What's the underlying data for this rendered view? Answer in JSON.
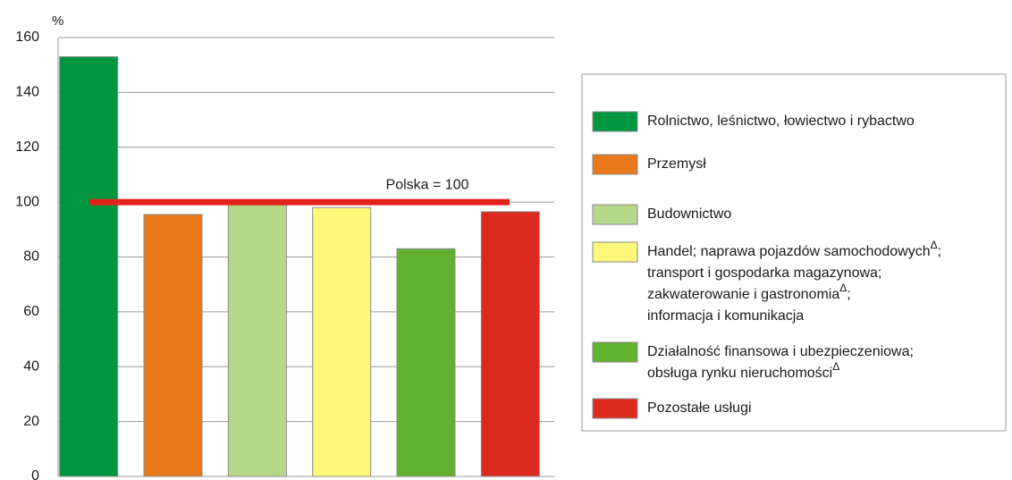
{
  "chart_data": {
    "type": "bar",
    "y_label": "%",
    "categories": [
      [
        "Rolnictwo, leśnictwo, łowiectwo i rybactwo"
      ],
      [
        "Przemysł"
      ],
      [
        "Budownictwo"
      ],
      [
        "Handel; naprawa pojazdów samochodowych^Δ;",
        "transport i gospodarka magazynowa;",
        "zakwaterowanie i gastronomia^Δ;",
        "informacja i komunikacja"
      ],
      [
        "Działalność finansowa i ubezpieczeniowa;",
        "obsługa rynku nieruchomości^Δ"
      ],
      [
        "Pozostałe usługi"
      ]
    ],
    "values": [
      153,
      95.5,
      99,
      98,
      83,
      96.5
    ],
    "colors": [
      "#009640",
      "#e8781a",
      "#b5d98a",
      "#fff87a",
      "#62b22f",
      "#dc2a20"
    ],
    "ylim": [
      0,
      160
    ],
    "yticks": [
      0,
      20,
      40,
      60,
      80,
      100,
      120,
      140,
      160
    ],
    "grid": true,
    "reference_line": {
      "value": 100,
      "label": "Polska = 100",
      "color": "#e2231a"
    },
    "legend": "right"
  }
}
